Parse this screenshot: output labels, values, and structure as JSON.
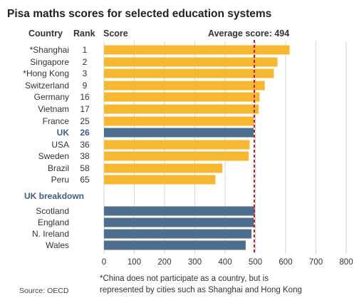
{
  "header": {
    "title": "Pisa maths scores for selected education systems",
    "country_label": "Country",
    "rank_label": "Rank",
    "score_label": "Score",
    "average_label": "Average score: 494"
  },
  "chart_data": {
    "type": "bar",
    "orientation": "horizontal",
    "title": "Pisa maths scores for selected education systems",
    "xlabel": "Score",
    "xlim": [
      0,
      800
    ],
    "xticks": [
      "0",
      "100",
      "200",
      "300",
      "400",
      "500",
      "600",
      "700",
      "800"
    ],
    "grid": true,
    "average": 494,
    "colors": {
      "highlight": "#f7b731",
      "uk": "#4d6e8e",
      "average_line": "#b41e24",
      "grid": "#d6d6d6"
    },
    "rows": [
      {
        "country": "*Shanghai",
        "rank": "1",
        "value": 613,
        "group": "highlight"
      },
      {
        "country": "Singapore",
        "rank": "2",
        "value": 573,
        "group": "highlight"
      },
      {
        "country": "*Hong Kong",
        "rank": "3",
        "value": 561,
        "group": "highlight"
      },
      {
        "country": "Switzerland",
        "rank": "9",
        "value": 531,
        "group": "highlight"
      },
      {
        "country": "Germany",
        "rank": "16",
        "value": 514,
        "group": "highlight"
      },
      {
        "country": "Vietnam",
        "rank": "17",
        "value": 511,
        "group": "highlight"
      },
      {
        "country": "France",
        "rank": "25",
        "value": 495,
        "group": "highlight"
      },
      {
        "country": "UK",
        "rank": "26",
        "value": 494,
        "group": "uk"
      },
      {
        "country": "USA",
        "rank": "36",
        "value": 481,
        "group": "highlight"
      },
      {
        "country": "Sweden",
        "rank": "38",
        "value": 478,
        "group": "highlight"
      },
      {
        "country": "Brazil",
        "rank": "58",
        "value": 391,
        "group": "highlight"
      },
      {
        "country": "Peru",
        "rank": "65",
        "value": 368,
        "group": "highlight"
      }
    ],
    "breakdown_label": "UK breakdown",
    "breakdown_rows": [
      {
        "country": "Scotland",
        "value": 498,
        "group": "uk"
      },
      {
        "country": "England",
        "value": 495,
        "group": "uk"
      },
      {
        "country": "N. Ireland",
        "value": 487,
        "group": "uk"
      },
      {
        "country": "Wales",
        "value": 468,
        "group": "uk"
      }
    ]
  },
  "footer": {
    "source": "Source: OECD",
    "note_line1": "*China does not participate as a country, but is",
    "note_line2": "represented by cities such as Shanghai and Hong Kong"
  }
}
